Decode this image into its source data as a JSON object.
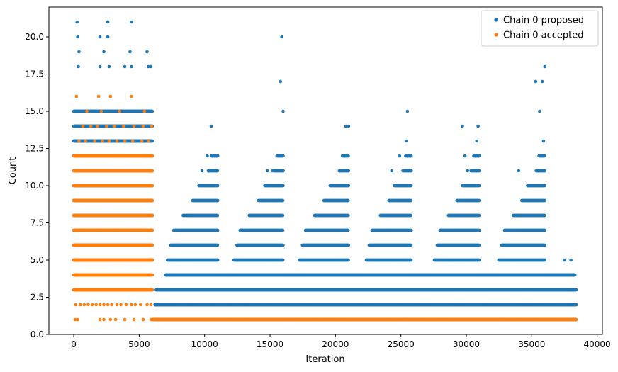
{
  "chart_data": {
    "type": "scatter",
    "title": "",
    "xlabel": "Iteration",
    "ylabel": "Count",
    "xlim": [
      -1900,
      40400
    ],
    "ylim": [
      0,
      22
    ],
    "x_ticks": [
      0,
      5000,
      10000,
      15000,
      20000,
      25000,
      30000,
      35000,
      40000
    ],
    "x_tick_labels": [
      "0",
      "5000",
      "10000",
      "15000",
      "20000",
      "25000",
      "30000",
      "35000",
      "40000"
    ],
    "y_ticks": [
      0,
      2.5,
      5,
      7.5,
      10,
      12.5,
      15,
      17.5,
      20
    ],
    "y_tick_labels": [
      "0.0",
      "2.5",
      "5.0",
      "7.5",
      "10.0",
      "12.5",
      "15.0",
      "17.5",
      "20.0"
    ],
    "grid": false,
    "legend_position": "top-right",
    "series": [
      {
        "name": "Chain 0 proposed",
        "color": "#1f77b4",
        "bands": [
          {
            "y": 1,
            "from": 6200,
            "to": 38400
          },
          {
            "y": 2,
            "from": 6200,
            "to": 38400
          },
          {
            "y": 3,
            "from": 6300,
            "to": 38400
          },
          {
            "y": 4,
            "from": 7000,
            "to": 38300
          },
          {
            "y": 5,
            "from": 0,
            "to": 6000
          },
          {
            "y": 6,
            "from": 0,
            "to": 6000
          },
          {
            "y": 7,
            "from": 0,
            "to": 6000
          },
          {
            "y": 8,
            "from": 0,
            "to": 6000
          },
          {
            "y": 9,
            "from": 0,
            "to": 6000
          },
          {
            "y": 10,
            "from": 0,
            "to": 6000
          },
          {
            "y": 11,
            "from": 0,
            "to": 6000
          },
          {
            "y": 12,
            "from": 0,
            "to": 6000
          },
          {
            "y": 13,
            "from": 0,
            "to": 6000
          },
          {
            "y": 14,
            "from": 0,
            "to": 6000
          },
          {
            "y": 15,
            "from": 0,
            "to": 6000
          }
        ],
        "cycles": {
          "starts": [
            6200,
            11300,
            16300,
            21500,
            26700,
            31600
          ],
          "ends": [
            11000,
            16000,
            21000,
            25800,
            31000,
            36000
          ],
          "level_starts": {
            "5": 0.2,
            "6": 0.25,
            "7": 0.3,
            "8": 0.45,
            "9": 0.6,
            "10": 0.7,
            "11": 0.85,
            "12": 0.9
          }
        },
        "points": [
          {
            "x": 250,
            "y": 21
          },
          {
            "x": 2600,
            "y": 21
          },
          {
            "x": 4400,
            "y": 21
          },
          {
            "x": 300,
            "y": 20
          },
          {
            "x": 2000,
            "y": 20
          },
          {
            "x": 2600,
            "y": 20
          },
          {
            "x": 15900,
            "y": 20
          },
          {
            "x": 400,
            "y": 19
          },
          {
            "x": 2300,
            "y": 19
          },
          {
            "x": 4300,
            "y": 19
          },
          {
            "x": 5600,
            "y": 19
          },
          {
            "x": 350,
            "y": 18
          },
          {
            "x": 2000,
            "y": 18
          },
          {
            "x": 2700,
            "y": 18
          },
          {
            "x": 3900,
            "y": 18
          },
          {
            "x": 4400,
            "y": 18
          },
          {
            "x": 5700,
            "y": 18
          },
          {
            "x": 5900,
            "y": 18
          },
          {
            "x": 36000,
            "y": 18
          },
          {
            "x": 15800,
            "y": 17
          },
          {
            "x": 35300,
            "y": 17
          },
          {
            "x": 35800,
            "y": 17
          },
          {
            "x": 16000,
            "y": 15
          },
          {
            "x": 25500,
            "y": 15
          },
          {
            "x": 35600,
            "y": 15
          },
          {
            "x": 10500,
            "y": 14
          },
          {
            "x": 20800,
            "y": 14
          },
          {
            "x": 21000,
            "y": 14
          },
          {
            "x": 29700,
            "y": 14
          },
          {
            "x": 30900,
            "y": 14
          },
          {
            "x": 25400,
            "y": 13
          },
          {
            "x": 30800,
            "y": 13
          },
          {
            "x": 35900,
            "y": 13
          },
          {
            "x": 10200,
            "y": 12
          },
          {
            "x": 11000,
            "y": 12
          },
          {
            "x": 15800,
            "y": 12
          },
          {
            "x": 16000,
            "y": 12
          },
          {
            "x": 20700,
            "y": 12
          },
          {
            "x": 24900,
            "y": 12
          },
          {
            "x": 29900,
            "y": 12
          },
          {
            "x": 30800,
            "y": 12
          },
          {
            "x": 35700,
            "y": 12
          },
          {
            "x": 35900,
            "y": 12
          },
          {
            "x": 9800,
            "y": 11
          },
          {
            "x": 10300,
            "y": 11
          },
          {
            "x": 14800,
            "y": 11
          },
          {
            "x": 15200,
            "y": 11
          },
          {
            "x": 15900,
            "y": 11
          },
          {
            "x": 16000,
            "y": 11
          },
          {
            "x": 20500,
            "y": 11
          },
          {
            "x": 20800,
            "y": 11
          },
          {
            "x": 24300,
            "y": 11
          },
          {
            "x": 25400,
            "y": 11
          },
          {
            "x": 30100,
            "y": 11
          },
          {
            "x": 30800,
            "y": 11
          },
          {
            "x": 34000,
            "y": 11
          },
          {
            "x": 35500,
            "y": 11
          },
          {
            "x": 35800,
            "y": 11
          },
          {
            "x": 36000,
            "y": 11
          },
          {
            "x": 38000,
            "y": 5
          },
          {
            "x": 37500,
            "y": 5
          }
        ]
      },
      {
        "name": "Chain 0 accepted",
        "color": "#ff7f0e",
        "bands": [
          {
            "y": 1,
            "from": 6000,
            "to": 38400
          },
          {
            "y": 3,
            "from": 0,
            "to": 6000
          },
          {
            "y": 4,
            "from": 0,
            "to": 6000
          },
          {
            "y": 5,
            "from": 0,
            "to": 6000
          },
          {
            "y": 6,
            "from": 0,
            "to": 6000
          },
          {
            "y": 7,
            "from": 0,
            "to": 6000
          },
          {
            "y": 8,
            "from": 0,
            "to": 6000
          },
          {
            "y": 9,
            "from": 0,
            "to": 6000
          },
          {
            "y": 10,
            "from": 0,
            "to": 6000
          },
          {
            "y": 11,
            "from": 0,
            "to": 6000
          },
          {
            "y": 12,
            "from": 0,
            "to": 6000
          }
        ],
        "points": [
          {
            "x": 100,
            "y": 1
          },
          {
            "x": 300,
            "y": 1
          },
          {
            "x": 2000,
            "y": 1
          },
          {
            "x": 2300,
            "y": 1
          },
          {
            "x": 2800,
            "y": 1
          },
          {
            "x": 3200,
            "y": 1
          },
          {
            "x": 3900,
            "y": 1
          },
          {
            "x": 4600,
            "y": 1
          },
          {
            "x": 5300,
            "y": 1
          },
          {
            "x": 5900,
            "y": 1
          },
          {
            "x": 150,
            "y": 2
          },
          {
            "x": 500,
            "y": 2
          },
          {
            "x": 800,
            "y": 2
          },
          {
            "x": 1100,
            "y": 2
          },
          {
            "x": 1400,
            "y": 2
          },
          {
            "x": 1700,
            "y": 2
          },
          {
            "x": 2000,
            "y": 2
          },
          {
            "x": 2300,
            "y": 2
          },
          {
            "x": 2600,
            "y": 2
          },
          {
            "x": 2900,
            "y": 2
          },
          {
            "x": 3300,
            "y": 2
          },
          {
            "x": 3600,
            "y": 2
          },
          {
            "x": 4000,
            "y": 2
          },
          {
            "x": 4400,
            "y": 2
          },
          {
            "x": 4700,
            "y": 2
          },
          {
            "x": 5100,
            "y": 2
          },
          {
            "x": 5600,
            "y": 2
          },
          {
            "x": 5900,
            "y": 2
          },
          {
            "x": 400,
            "y": 13
          },
          {
            "x": 900,
            "y": 13
          },
          {
            "x": 1600,
            "y": 13
          },
          {
            "x": 2200,
            "y": 13
          },
          {
            "x": 2700,
            "y": 13
          },
          {
            "x": 3300,
            "y": 13
          },
          {
            "x": 3900,
            "y": 13
          },
          {
            "x": 4500,
            "y": 13
          },
          {
            "x": 5200,
            "y": 13
          },
          {
            "x": 5700,
            "y": 13
          },
          {
            "x": 700,
            "y": 14
          },
          {
            "x": 1300,
            "y": 14
          },
          {
            "x": 1800,
            "y": 14
          },
          {
            "x": 2500,
            "y": 14
          },
          {
            "x": 3100,
            "y": 14
          },
          {
            "x": 3800,
            "y": 14
          },
          {
            "x": 4600,
            "y": 14
          },
          {
            "x": 5300,
            "y": 14
          },
          {
            "x": 5950,
            "y": 14
          },
          {
            "x": 1000,
            "y": 15
          },
          {
            "x": 2100,
            "y": 15
          },
          {
            "x": 3500,
            "y": 15
          },
          {
            "x": 5400,
            "y": 15
          },
          {
            "x": 200,
            "y": 16
          },
          {
            "x": 1900,
            "y": 16
          },
          {
            "x": 2800,
            "y": 16
          },
          {
            "x": 4400,
            "y": 16
          }
        ]
      }
    ]
  }
}
